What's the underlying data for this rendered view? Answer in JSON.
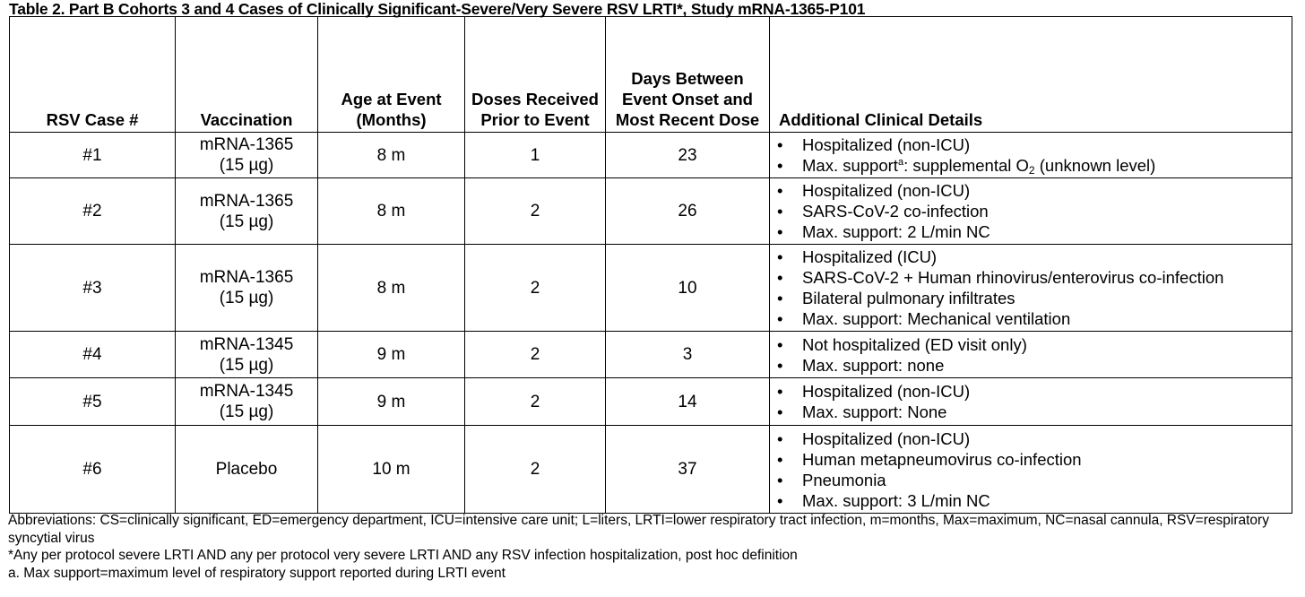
{
  "title": "Table 2. Part B Cohorts 3 and 4 Cases of Clinically Significant-Severe/Very Severe RSV LRTI*, Study mRNA-1365-P101",
  "headers": [
    "RSV Case #",
    "Vaccination",
    "Age at Event (Months)",
    "Doses Received Prior to Event",
    "Days Between Event Onset and Most Recent Dose",
    "Additional Clinical Details"
  ],
  "rows": [
    {
      "case": "#1",
      "vac": "mRNA-1365",
      "dose_amt": "(15 µg)",
      "age": "8 m",
      "doses": "1",
      "days": "23",
      "details": [
        "Hospitalized (non-ICU)"
      ],
      "detail_special": {
        "a": "Max. support",
        "sup": "a",
        "b": ": supplemental O",
        "sub": "2",
        "c": " (unknown level)"
      }
    },
    {
      "case": "#2",
      "vac": "mRNA-1365",
      "dose_amt": "(15 µg)",
      "age": "8 m",
      "doses": "2",
      "days": "26",
      "details": [
        "Hospitalized (non-ICU)",
        "SARS-CoV-2 co-infection",
        "Max. support: 2 L/min NC"
      ]
    },
    {
      "case": "#3",
      "vac": "mRNA-1365",
      "dose_amt": "(15 µg)",
      "age": "8 m",
      "doses": "2",
      "days": "10",
      "details": [
        "Hospitalized (ICU)",
        "SARS-CoV-2 + Human rhinovirus/enterovirus co-infection",
        "Bilateral pulmonary infiltrates",
        "Max. support: Mechanical ventilation"
      ]
    },
    {
      "case": "#4",
      "vac": "mRNA-1345",
      "dose_amt": "(15 µg)",
      "age": "9 m",
      "doses": "2",
      "days": "3",
      "details": [
        "Not hospitalized (ED visit only)",
        "Max. support: none"
      ]
    },
    {
      "case": "#5",
      "vac": "mRNA-1345",
      "dose_amt": "(15 µg)",
      "age": "9 m",
      "doses": "2",
      "days": "14",
      "details": [
        "Hospitalized (non-ICU)",
        "Max. support: None"
      ]
    },
    {
      "case": "#6",
      "vac": "Placebo",
      "dose_amt": "",
      "age": "10 m",
      "doses": "2",
      "days": "37",
      "details": [
        "Hospitalized (non-ICU)",
        "Human metapneumovirus co-infection",
        "Pneumonia",
        "Max. support: 3 L/min NC"
      ]
    }
  ],
  "notes": [
    "Abbreviations: CS=clinically significant, ED=emergency department, ICU=intensive care unit; L=liters, LRTI=lower respiratory tract infection, m=months, Max=maximum, NC=nasal cannula, RSV=respiratory syncytial virus",
    "*Any per protocol severe LRTI AND any per protocol very severe LRTI AND any RSV infection hospitalization, post hoc definition",
    "a. Max support=maximum level of respiratory support reported during LRTI event"
  ]
}
